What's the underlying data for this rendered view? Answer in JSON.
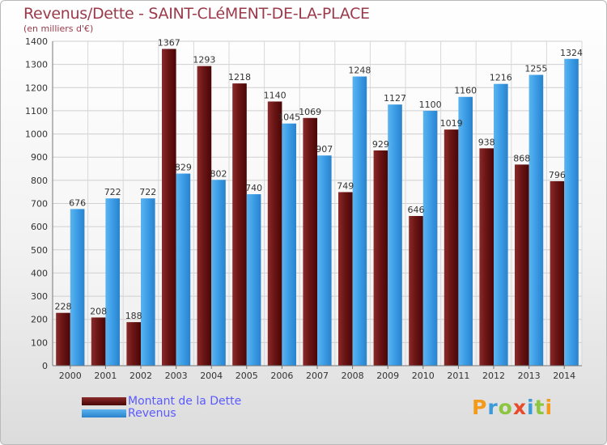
{
  "title": "Revenus/Dette - SAINT-CLéMENT-DE-LA-PLACE",
  "subtitle": "(en milliers d'€)",
  "legend": {
    "items": [
      {
        "label": "Montant de la Dette",
        "color": "#6b1111"
      },
      {
        "label": "Revenus",
        "color": "#3b9ce6"
      }
    ]
  },
  "logo": {
    "text": "Proxiti",
    "letters": [
      "P",
      "r",
      "o",
      "x",
      "i",
      "t",
      "i"
    ],
    "colors": [
      "#f39a1a",
      "#3a9bdc",
      "#8cc63f",
      "#e84a2a",
      "#3a9bdc",
      "#8cc63f",
      "#f39a1a"
    ]
  },
  "chart_data": {
    "type": "bar",
    "title": "Revenus/Dette - SAINT-CLéMENT-DE-LA-PLACE",
    "ylabel": "(en milliers d'€)",
    "categories": [
      "2000",
      "2001",
      "2002",
      "2003",
      "2004",
      "2005",
      "2006",
      "2007",
      "2008",
      "2009",
      "2010",
      "2011",
      "2012",
      "2013",
      "2014"
    ],
    "series": [
      {
        "name": "Montant de la Dette",
        "color": "#6b1111",
        "values": [
          228,
          208,
          188,
          1367,
          1293,
          1218,
          1140,
          1069,
          749,
          929,
          646,
          1019,
          938,
          868,
          796
        ]
      },
      {
        "name": "Revenus",
        "color": "#3b9ce6",
        "values": [
          676,
          722,
          722,
          829,
          802,
          740,
          1045,
          907,
          1248,
          1127,
          1100,
          1160,
          1216,
          1255,
          1324
        ]
      }
    ],
    "ylim": [
      0,
      1400
    ],
    "yticks": [
      0,
      100,
      200,
      300,
      400,
      500,
      600,
      700,
      800,
      900,
      1000,
      1100,
      1200,
      1300,
      1400
    ],
    "grid": true,
    "legend_position": "bottom-left"
  }
}
